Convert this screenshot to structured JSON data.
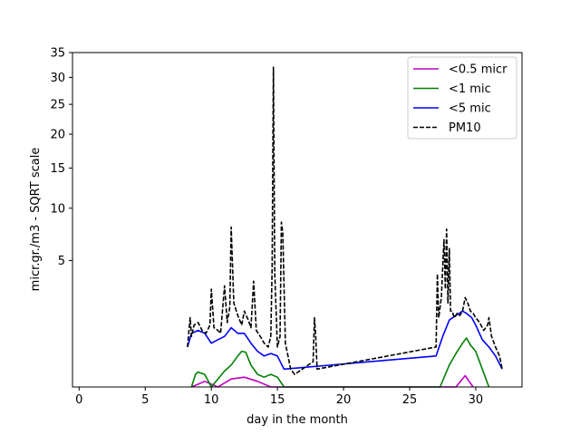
{
  "chart_data": {
    "type": "line",
    "title": "",
    "xlabel": "day in the month",
    "ylabel": "micr.gr./m3 - SQRT scale",
    "y_scale": "sqrt",
    "xlim": [
      -0.5,
      33.5
    ],
    "ylim": [
      0,
      35
    ],
    "x_ticks": [
      0,
      5,
      10,
      15,
      20,
      25,
      30
    ],
    "y_ticks": [
      5,
      10,
      15,
      20,
      25,
      30,
      35
    ],
    "grid": false,
    "legend_position": "top-right",
    "series": [
      {
        "name": "<0.5 micr",
        "color": "#bf00bf",
        "style": "solid",
        "x": [
          8.5,
          9.5,
          10.5,
          11.5,
          12.5,
          13.5,
          14.5,
          15.5,
          28.5,
          29.2,
          29.8
        ],
        "y": [
          0.0,
          0.01,
          0.0,
          0.02,
          0.03,
          0.01,
          0.0,
          0.0,
          0.0,
          0.04,
          0.0
        ]
      },
      {
        "name": "<1 mic",
        "color": "#008000",
        "style": "solid",
        "x": [
          8.5,
          8.8,
          9.0,
          9.5,
          10.0,
          10.5,
          11.0,
          11.5,
          12.0,
          12.3,
          12.6,
          13.0,
          13.5,
          14.0,
          14.5,
          15.0,
          15.5,
          27.3,
          28.0,
          28.5,
          29.0,
          29.3,
          29.6,
          30.0,
          30.5,
          31.0
        ],
        "y": [
          0.0,
          0.05,
          0.07,
          0.05,
          0.0,
          0.02,
          0.08,
          0.15,
          0.3,
          0.4,
          0.38,
          0.15,
          0.05,
          0.03,
          0.05,
          0.03,
          0.0,
          0.0,
          0.15,
          0.35,
          0.6,
          0.75,
          0.55,
          0.4,
          0.1,
          0.0
        ]
      },
      {
        "name": "<5 mic",
        "color": "#0000ff",
        "style": "solid",
        "x": [
          8.2,
          8.5,
          9.0,
          9.5,
          10.0,
          10.5,
          11.0,
          11.5,
          12.0,
          12.5,
          13.0,
          13.5,
          14.0,
          14.5,
          15.0,
          15.5,
          27.0,
          27.5,
          28.0,
          28.5,
          29.0,
          29.3,
          29.7,
          30.0,
          30.5,
          31.0,
          31.5,
          32.0
        ],
        "y": [
          0.5,
          0.9,
          1.0,
          0.9,
          0.6,
          0.7,
          0.8,
          1.1,
          0.9,
          0.9,
          0.6,
          0.4,
          0.3,
          0.35,
          0.3,
          0.1,
          0.3,
          0.8,
          1.4,
          1.6,
          1.8,
          1.7,
          1.5,
          1.2,
          0.7,
          0.5,
          0.3,
          0.1
        ]
      },
      {
        "name": "PM10",
        "color": "#000000",
        "style": "dashed",
        "x": [
          8.2,
          8.4,
          8.5,
          8.7,
          9.0,
          9.3,
          9.6,
          9.9,
          10.0,
          10.2,
          10.5,
          10.7,
          11.0,
          11.2,
          11.4,
          11.5,
          11.7,
          12.0,
          12.3,
          12.5,
          12.8,
          13.0,
          13.2,
          13.4,
          13.7,
          14.0,
          14.3,
          14.5,
          14.6,
          14.7,
          14.8,
          15.0,
          15.2,
          15.3,
          15.4,
          15.6,
          15.8,
          16.0,
          16.3,
          17.7,
          17.8,
          17.9,
          18.0,
          27.0,
          27.1,
          27.2,
          27.4,
          27.6,
          27.7,
          27.8,
          27.9,
          28.0,
          28.1,
          28.2,
          28.4,
          28.6,
          28.8,
          29.0,
          29.2,
          29.4,
          29.6,
          29.8,
          30.0,
          30.3,
          30.6,
          30.9,
          31.0,
          31.2,
          31.5,
          31.8,
          32.0
        ],
        "y": [
          0.5,
          1.5,
          0.8,
          1.2,
          1.3,
          1.0,
          0.9,
          1.2,
          3.0,
          1.1,
          1.0,
          0.9,
          3.2,
          1.3,
          2.0,
          8.0,
          2.2,
          1.6,
          1.2,
          1.8,
          1.4,
          1.1,
          3.5,
          1.0,
          0.8,
          0.6,
          0.5,
          0.8,
          4.5,
          32.0,
          4.0,
          0.5,
          0.8,
          8.5,
          7.5,
          0.6,
          0.3,
          0.1,
          0.05,
          0.2,
          1.5,
          0.8,
          0.1,
          0.5,
          4.0,
          1.5,
          2.5,
          6.8,
          3.0,
          7.8,
          2.2,
          6.0,
          1.8,
          1.8,
          1.5,
          1.7,
          1.6,
          1.8,
          2.5,
          2.2,
          1.8,
          1.7,
          1.5,
          1.3,
          1.0,
          1.2,
          1.5,
          0.8,
          0.5,
          0.3,
          0.1
        ]
      }
    ]
  }
}
